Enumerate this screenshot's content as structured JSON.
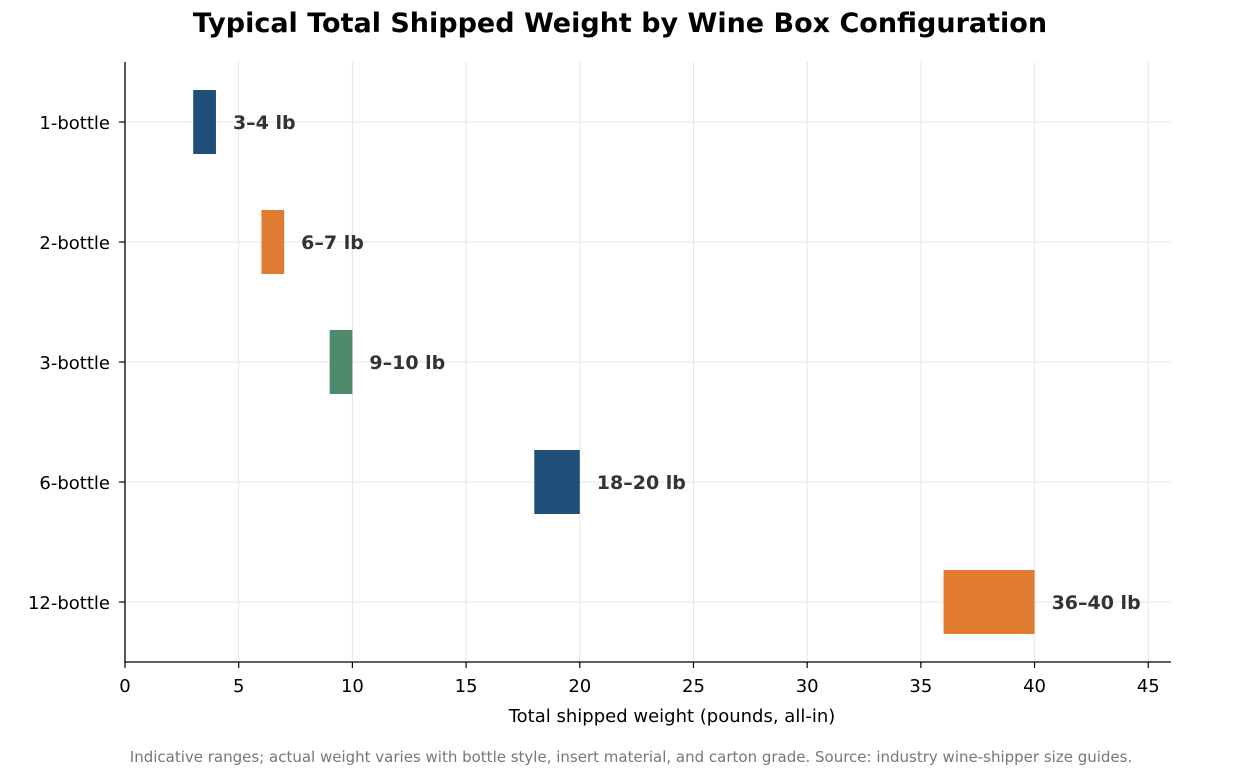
{
  "chart_data": {
    "type": "bar",
    "orientation": "horizontal-range",
    "title": "Typical Total Shipped Weight by Wine Box Configuration",
    "xlabel": "Total shipped weight (pounds, all-in)",
    "ylabel": "",
    "xlim": [
      0,
      46
    ],
    "xticks": [
      0,
      5,
      10,
      15,
      20,
      25,
      30,
      35,
      40,
      45
    ],
    "grid": true,
    "categories": [
      "1-bottle",
      "2-bottle",
      "3-bottle",
      "6-bottle",
      "12-bottle"
    ],
    "ranges": [
      {
        "category": "1-bottle",
        "low": 3,
        "high": 4,
        "label": "3–4 lb",
        "color": "#1f4e79"
      },
      {
        "category": "2-bottle",
        "low": 6,
        "high": 7,
        "label": "6–7 lb",
        "color": "#e07b31"
      },
      {
        "category": "3-bottle",
        "low": 9,
        "high": 10,
        "label": "9–10 lb",
        "color": "#4e8b6e"
      },
      {
        "category": "6-bottle",
        "low": 18,
        "high": 20,
        "label": "18–20 lb",
        "color": "#1f4e79"
      },
      {
        "category": "12-bottle",
        "low": 36,
        "high": 40,
        "label": "36–40 lb",
        "color": "#e07b31"
      }
    ],
    "footnote": "Indicative ranges; actual weight varies with bottle style, insert material, and carton grade. Source: industry wine-shipper size guides."
  }
}
